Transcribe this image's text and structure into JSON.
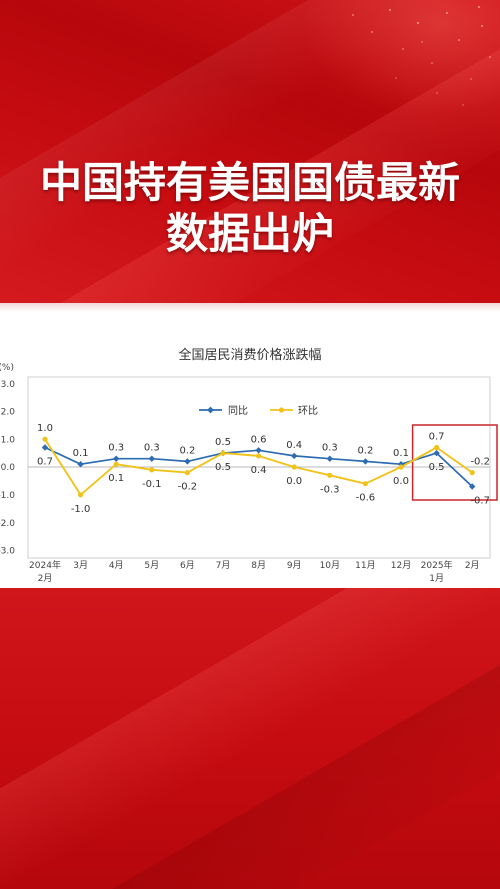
{
  "headline": {
    "line1": "中国持有美国国债最新",
    "line2": "数据出炉"
  },
  "colors": {
    "banner_red": "#c60c11",
    "headline_text": "#ffffff"
  },
  "chart_data": {
    "type": "line",
    "title": "全国居民消费价格涨跌幅",
    "xlabel": "",
    "ylabel": "(%)",
    "categories": [
      [
        "2024年",
        "2月"
      ],
      [
        "3月"
      ],
      [
        "4月"
      ],
      [
        "5月"
      ],
      [
        "6月"
      ],
      [
        "7月"
      ],
      [
        "8月"
      ],
      [
        "9月"
      ],
      [
        "10月"
      ],
      [
        "11月"
      ],
      [
        "12月"
      ],
      [
        "2025年",
        "1月"
      ],
      [
        "2月"
      ]
    ],
    "ylim": [
      -3,
      3
    ],
    "yticks": [
      "3.0",
      "2.0",
      "1.0",
      "0.0",
      "-1.0",
      "-2.0",
      "-3.0"
    ],
    "grid": false,
    "legend_position": "top-center",
    "series": [
      {
        "name": "同比",
        "color": "#2d6cb1",
        "values": [
          0.7,
          0.1,
          0.3,
          0.3,
          0.2,
          0.5,
          0.6,
          0.4,
          0.3,
          0.2,
          0.1,
          0.5,
          -0.7
        ],
        "labels": [
          "0.7",
          "0.1",
          "0.3",
          "0.3",
          "0.2",
          "0.5",
          "0.6",
          "0.4",
          "0.3",
          "0.2",
          "0.1",
          "0.5",
          "-0.7"
        ]
      },
      {
        "name": "环比",
        "color": "#f1c21a",
        "values": [
          1.0,
          -1.0,
          0.1,
          -0.1,
          -0.2,
          0.5,
          0.4,
          0.0,
          -0.3,
          -0.6,
          0.0,
          0.7,
          -0.2
        ],
        "labels": [
          "1.0",
          "-1.0",
          "0.1",
          "-0.1",
          "-0.2",
          "0.5",
          "0.4",
          "0.0",
          "-0.3",
          "-0.6",
          "0.0",
          "0.7",
          "-0.2"
        ]
      }
    ],
    "highlight": {
      "category_indices": [
        11,
        12
      ],
      "color": "#c9262c"
    }
  }
}
